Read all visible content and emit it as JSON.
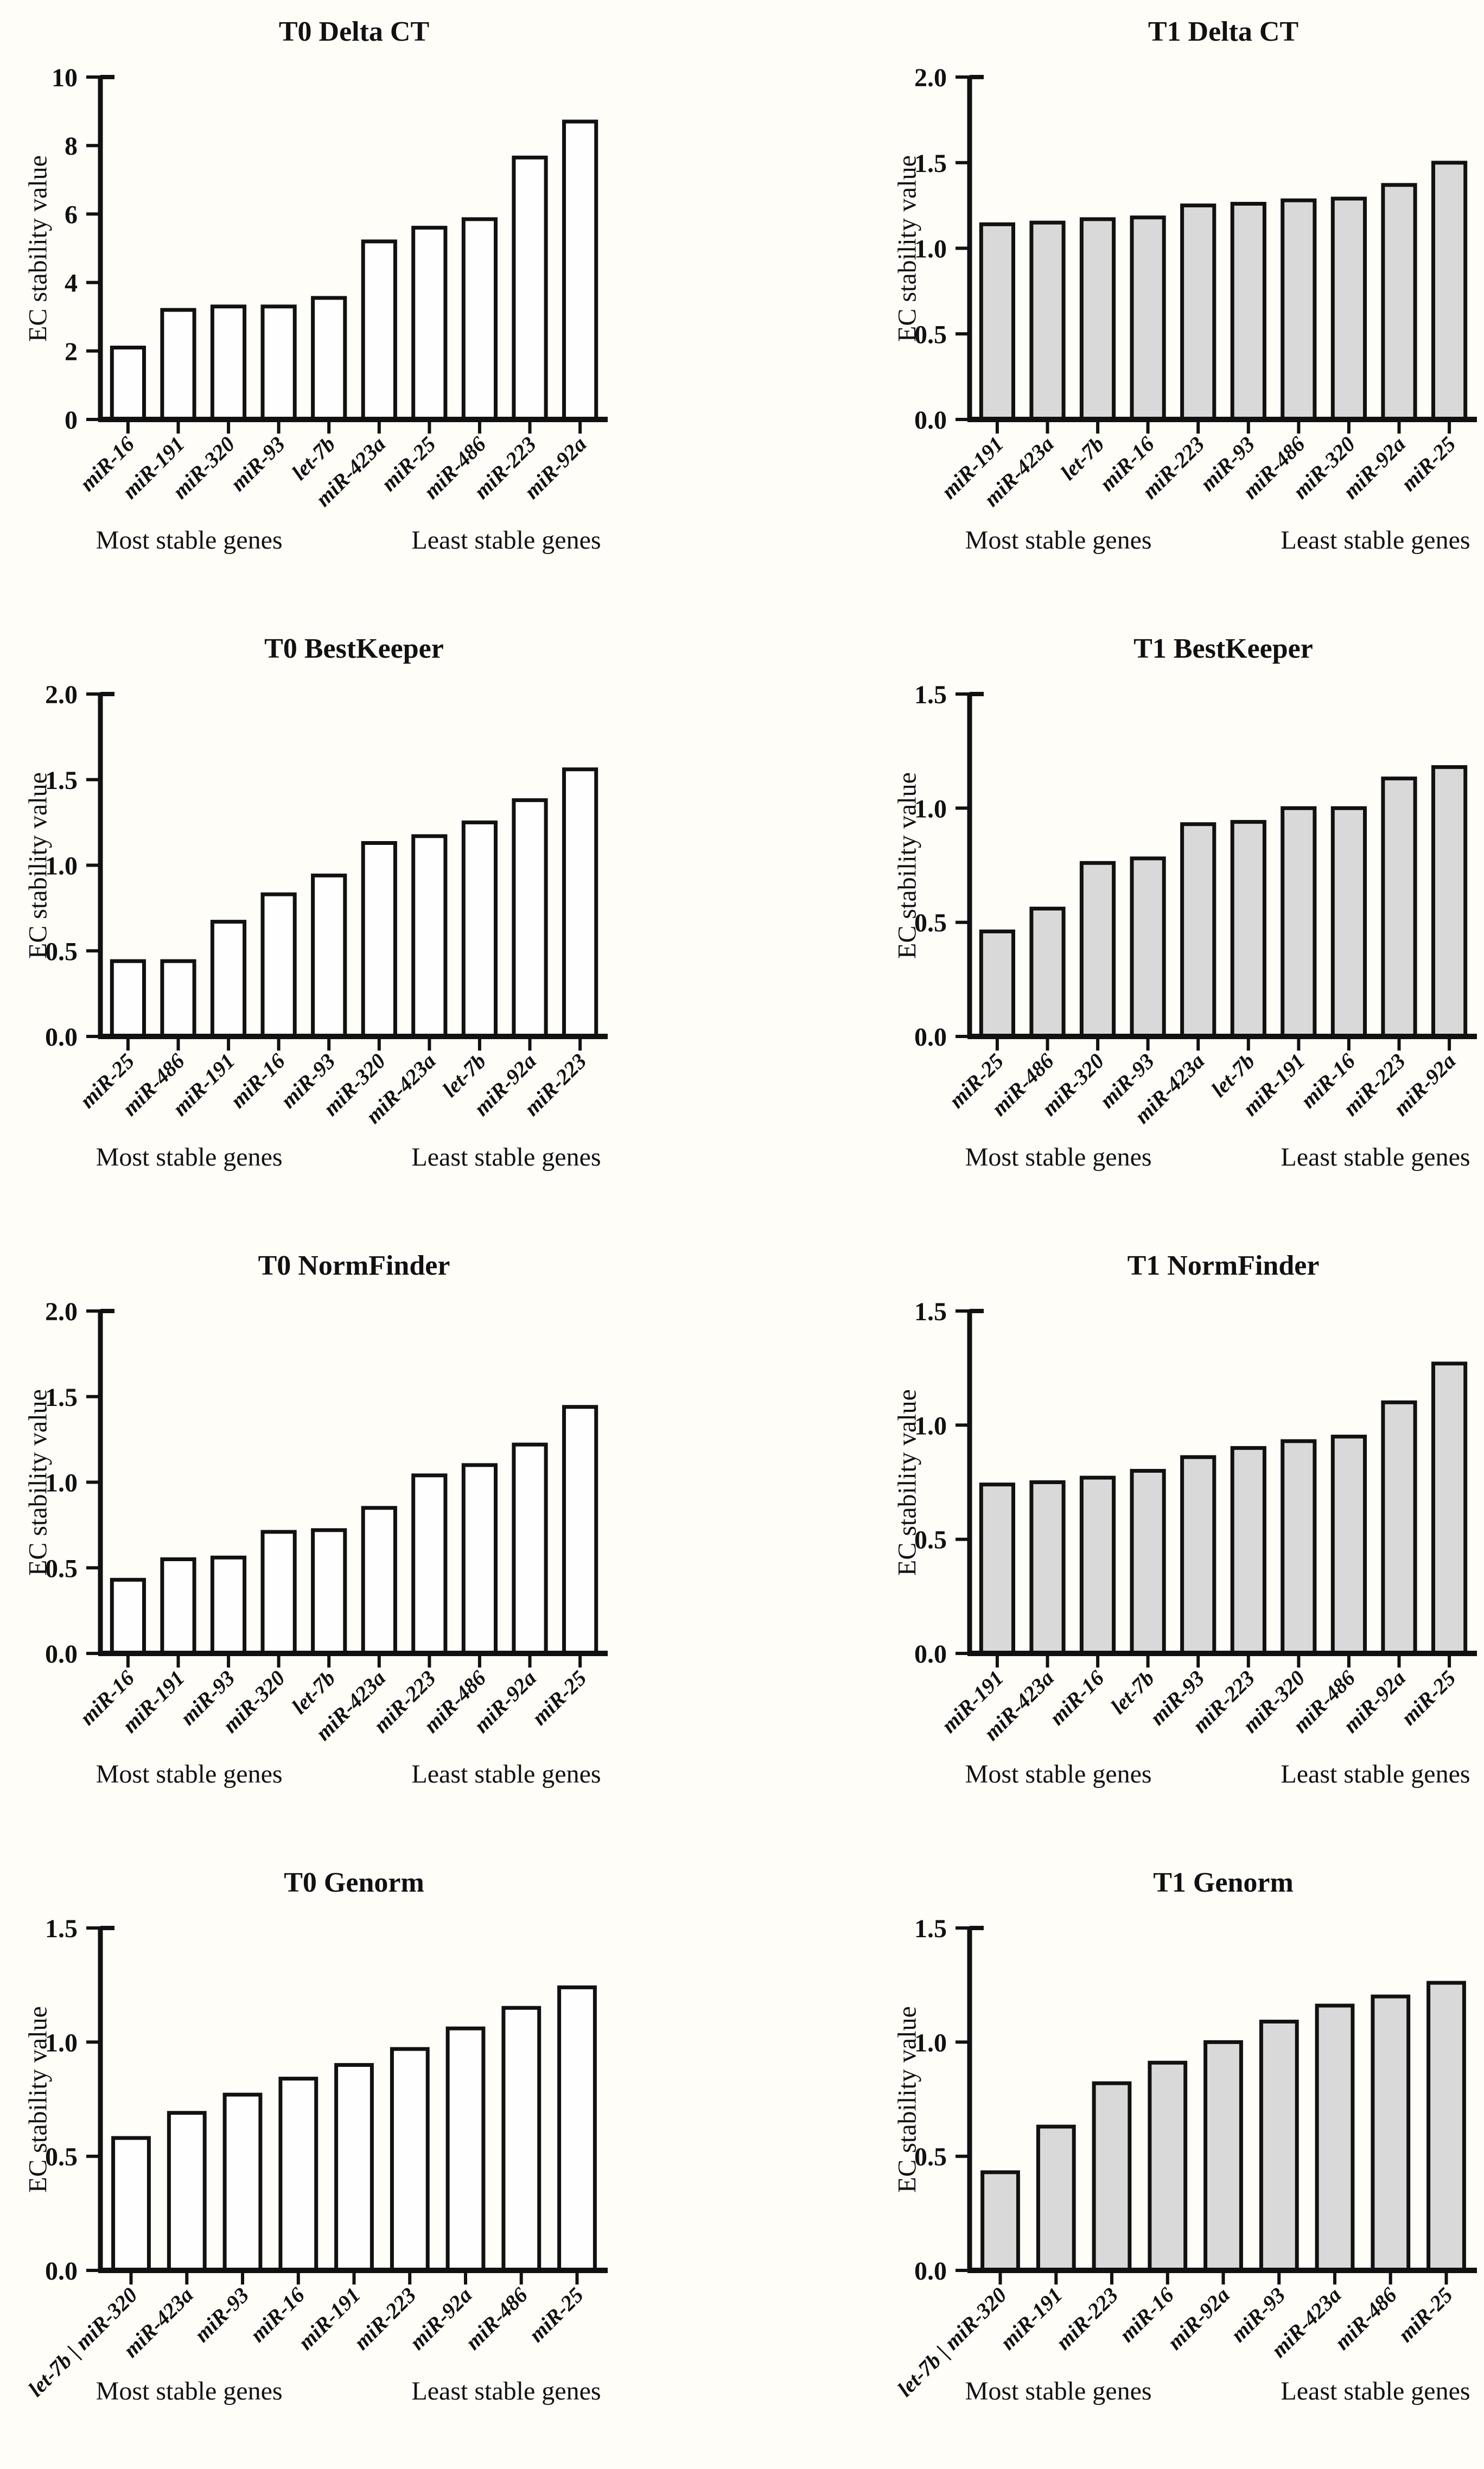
{
  "figure": {
    "ylabel": "EC stability value",
    "annotation_left": "Most stable genes",
    "annotation_right": "Least stable genes",
    "axis_color": "#111111",
    "background_color": "#fffdf8",
    "t0_bar_fill": "#fefefe",
    "t1_bar_fill": "#d9d9d9"
  },
  "chart_data": [
    {
      "id": "t0-delta-ct",
      "type": "bar",
      "title": "T0 Delta CT",
      "ylabel": "EC stability value",
      "xlabel": "",
      "ylim": [
        0,
        10
      ],
      "yticks": [
        0,
        2,
        4,
        6,
        8,
        10
      ],
      "decimals": 0,
      "grid": false,
      "bar_fill": "#fefefe",
      "categories": [
        "miR-16",
        "miR-191",
        "miR-320",
        "miR-93",
        "let-7b",
        "miR-423a",
        "miR-25",
        "miR-486",
        "miR-223",
        "miR-92a"
      ],
      "values": [
        2.1,
        3.2,
        3.3,
        3.3,
        3.55,
        5.2,
        5.6,
        5.85,
        7.65,
        8.7
      ],
      "annotations": [
        "Most stable genes",
        "Least stable genes"
      ]
    },
    {
      "id": "t1-delta-ct",
      "type": "bar",
      "title": "T1 Delta CT",
      "ylabel": "EC stability value",
      "xlabel": "",
      "ylim": [
        0,
        2.0
      ],
      "yticks": [
        0,
        0.5,
        1.0,
        1.5,
        2.0
      ],
      "decimals": 1,
      "grid": false,
      "bar_fill": "#d9d9d9",
      "categories": [
        "miR-191",
        "miR-423a",
        "let-7b",
        "miR-16",
        "miR-223",
        "miR-93",
        "miR-486",
        "miR-320",
        "miR-92a",
        "miR-25"
      ],
      "values": [
        1.14,
        1.15,
        1.17,
        1.18,
        1.25,
        1.26,
        1.28,
        1.29,
        1.37,
        1.5
      ],
      "annotations": [
        "Most stable genes",
        "Least stable genes"
      ]
    },
    {
      "id": "t0-bestkeeper",
      "type": "bar",
      "title": "T0 BestKeeper",
      "ylabel": "EC stability value",
      "xlabel": "",
      "ylim": [
        0,
        2.0
      ],
      "yticks": [
        0,
        0.5,
        1.0,
        1.5,
        2.0
      ],
      "decimals": 1,
      "grid": false,
      "bar_fill": "#fefefe",
      "categories": [
        "miR-25",
        "miR-486",
        "miR-191",
        "miR-16",
        "miR-93",
        "miR-320",
        "miR-423a",
        "let-7b",
        "miR-92a",
        "miR-223"
      ],
      "values": [
        0.44,
        0.44,
        0.67,
        0.83,
        0.94,
        1.13,
        1.17,
        1.25,
        1.38,
        1.56
      ],
      "annotations": [
        "Most stable genes",
        "Least stable genes"
      ]
    },
    {
      "id": "t1-bestkeeper",
      "type": "bar",
      "title": "T1 BestKeeper",
      "ylabel": "EC stability value",
      "xlabel": "",
      "ylim": [
        0,
        1.5
      ],
      "yticks": [
        0,
        0.5,
        1.0,
        1.5
      ],
      "decimals": 1,
      "grid": false,
      "bar_fill": "#d9d9d9",
      "categories": [
        "miR-25",
        "miR-486",
        "miR-320",
        "miR-93",
        "miR-423a",
        "let-7b",
        "miR-191",
        "miR-16",
        "miR-223",
        "miR-92a"
      ],
      "values": [
        0.46,
        0.56,
        0.76,
        0.78,
        0.93,
        0.94,
        1.0,
        1.0,
        1.13,
        1.18
      ],
      "annotations": [
        "Most stable genes",
        "Least stable genes"
      ]
    },
    {
      "id": "t0-normfinder",
      "type": "bar",
      "title": "T0 NormFinder",
      "ylabel": "EC stability value",
      "xlabel": "",
      "ylim": [
        0,
        2.0
      ],
      "yticks": [
        0,
        0.5,
        1.0,
        1.5,
        2.0
      ],
      "decimals": 1,
      "grid": false,
      "bar_fill": "#fefefe",
      "categories": [
        "miR-16",
        "miR-191",
        "miR-93",
        "miR-320",
        "let-7b",
        "miR-423a",
        "miR-223",
        "miR-486",
        "miR-92a",
        "miR-25"
      ],
      "values": [
        0.43,
        0.55,
        0.56,
        0.71,
        0.72,
        0.85,
        1.04,
        1.1,
        1.22,
        1.44
      ],
      "annotations": [
        "Most stable genes",
        "Least stable genes"
      ]
    },
    {
      "id": "t1-normfinder",
      "type": "bar",
      "title": "T1 NormFinder",
      "ylabel": "EC stability value",
      "xlabel": "",
      "ylim": [
        0,
        1.5
      ],
      "yticks": [
        0,
        0.5,
        1.0,
        1.5
      ],
      "decimals": 1,
      "grid": false,
      "bar_fill": "#d9d9d9",
      "categories": [
        "miR-191",
        "miR-423a",
        "miR-16",
        "let-7b",
        "miR-93",
        "miR-223",
        "miR-320",
        "miR-486",
        "miR-92a",
        "miR-25"
      ],
      "values": [
        0.74,
        0.75,
        0.77,
        0.8,
        0.86,
        0.9,
        0.93,
        0.95,
        1.1,
        1.27
      ],
      "annotations": [
        "Most stable genes",
        "Least stable genes"
      ]
    },
    {
      "id": "t0-genorm",
      "type": "bar",
      "title": "T0 Genorm",
      "ylabel": "EC stability value",
      "xlabel": "",
      "ylim": [
        0,
        1.5
      ],
      "yticks": [
        0,
        0.5,
        1.0,
        1.5
      ],
      "decimals": 1,
      "grid": false,
      "bar_fill": "#fefefe",
      "categories": [
        "let-7b | miR-320",
        "miR-423a",
        "miR-93",
        "miR-16",
        "miR-191",
        "miR-223",
        "miR-92a",
        "miR-486",
        "miR-25"
      ],
      "values": [
        0.58,
        0.69,
        0.77,
        0.84,
        0.9,
        0.97,
        1.06,
        1.15,
        1.24
      ],
      "annotations": [
        "Most stable genes",
        "Least stable genes"
      ]
    },
    {
      "id": "t1-genorm",
      "type": "bar",
      "title": "T1 Genorm",
      "ylabel": "EC stability value",
      "xlabel": "",
      "ylim": [
        0,
        1.5
      ],
      "yticks": [
        0,
        0.5,
        1.0,
        1.5
      ],
      "decimals": 1,
      "grid": false,
      "bar_fill": "#d9d9d9",
      "categories": [
        "let-7b | miR-320",
        "miR-191",
        "miR-223",
        "miR-16",
        "miR-92a",
        "miR-93",
        "miR-423a",
        "miR-486",
        "miR-25"
      ],
      "values": [
        0.43,
        0.63,
        0.82,
        0.91,
        1.0,
        1.09,
        1.16,
        1.2,
        1.26
      ],
      "annotations": [
        "Most stable genes",
        "Least stable genes"
      ]
    }
  ]
}
